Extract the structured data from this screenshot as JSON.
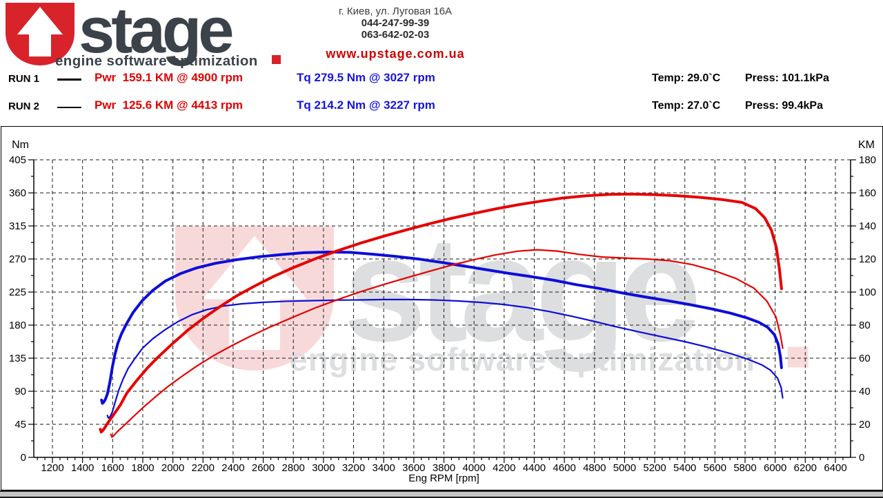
{
  "header": {
    "logo": {
      "brand": "stage",
      "tagline": "engine software optimization"
    },
    "address_lines": [
      "г. Киев, ул. Луговая 16А",
      "044-247-99-39",
      "063-642-02-03"
    ],
    "website": "www.upstage.com.ua"
  },
  "runs": [
    {
      "label": "RUN 1",
      "power_text": "Pwr  159.1 KM @ 4900 rpm",
      "torque_text": "Tq 279.5 Nm @ 3027 rpm",
      "temp_text": "Temp: 29.0`C",
      "press_text": "Press: 101.1kPa"
    },
    {
      "label": "RUN 2",
      "power_text": "Pwr  125.6 KM @ 4413 rpm",
      "torque_text": "Tq 214.2 Nm @ 3227 rpm",
      "temp_text": "Temp: 27.0`C",
      "press_text": "Press: 99.4kPa"
    }
  ],
  "colors": {
    "power_curve": "#e60000",
    "torque_curve": "#0d0dd9",
    "power_text": "#e00000",
    "torque_text": "#1515dd",
    "brand_red": "#d8232a",
    "brand_dark": "#3b424a",
    "website_red": "#cc0000",
    "grid": "#1a1a1a"
  },
  "chart_data": {
    "type": "line",
    "xlabel": "Eng RPM [rpm]",
    "x_axis": {
      "min_drawn": 1076,
      "max_drawn": 6501,
      "tick_min": 1200,
      "tick_max": 6400,
      "tick_step": 200,
      "minor_step": 50
    },
    "left_axis": {
      "label": "Nm",
      "min": 0,
      "max": 405,
      "tick_step": 45,
      "minor_step": 22.5
    },
    "right_axis": {
      "label": "KM",
      "min": 0,
      "max": 180,
      "tick_step": 20,
      "minor_step": 10
    },
    "grid": true,
    "legend_position": "top-outside",
    "series": [
      {
        "name": "run2-torque",
        "run": "RUN 2",
        "quantity": "torque",
        "axis": "left",
        "peak_label": "214.2 Nm @ 3227 rpm",
        "color": "#0d0dd9",
        "width": 2.2,
        "points": [
          [
            1565,
            57
          ],
          [
            1572,
            53.5
          ],
          [
            1582,
            55
          ],
          [
            1598,
            62
          ],
          [
            1618,
            76
          ],
          [
            1640,
            91
          ],
          [
            1668,
            106
          ],
          [
            1703,
            121
          ],
          [
            1745,
            134
          ],
          [
            1800,
            149
          ],
          [
            1870,
            162
          ],
          [
            1950,
            174
          ],
          [
            2035,
            185
          ],
          [
            2125,
            194
          ],
          [
            2225,
            201
          ],
          [
            2335,
            206
          ],
          [
            2455,
            209
          ],
          [
            2600,
            211
          ],
          [
            2760,
            212.5
          ],
          [
            2930,
            213.3
          ],
          [
            3100,
            214
          ],
          [
            3230,
            214.2
          ],
          [
            3400,
            214.8
          ],
          [
            3570,
            214.8
          ],
          [
            3740,
            214.2
          ],
          [
            3900,
            212.8
          ],
          [
            4050,
            210.8
          ],
          [
            4200,
            208
          ],
          [
            4350,
            204
          ],
          [
            4500,
            198.5
          ],
          [
            4650,
            192
          ],
          [
            4800,
            185
          ],
          [
            4950,
            177.5
          ],
          [
            5100,
            170.5
          ],
          [
            5250,
            164
          ],
          [
            5400,
            157.5
          ],
          [
            5550,
            150
          ],
          [
            5700,
            141.5
          ],
          [
            5820,
            133.5
          ],
          [
            5910,
            126
          ],
          [
            5970,
            118.5
          ],
          [
            6015,
            108
          ],
          [
            6040,
            95
          ],
          [
            6050,
            81
          ]
        ]
      },
      {
        "name": "run1-torque",
        "run": "RUN 1",
        "quantity": "torque",
        "axis": "left",
        "peak_label": "279.5 Nm @ 3027 rpm",
        "color": "#0d0dd9",
        "width": 4,
        "points": [
          [
            1526,
            78
          ],
          [
            1532,
            73.5
          ],
          [
            1540,
            75
          ],
          [
            1552,
            79
          ],
          [
            1566,
            87
          ],
          [
            1582,
            103
          ],
          [
            1598,
            123
          ],
          [
            1615,
            140
          ],
          [
            1634,
            155
          ],
          [
            1658,
            168
          ],
          [
            1690,
            181
          ],
          [
            1735,
            197
          ],
          [
            1795,
            213
          ],
          [
            1865,
            227
          ],
          [
            1950,
            240
          ],
          [
            2050,
            250
          ],
          [
            2160,
            258
          ],
          [
            2280,
            264
          ],
          [
            2420,
            269
          ],
          [
            2570,
            273
          ],
          [
            2720,
            276
          ],
          [
            2870,
            278.5
          ],
          [
            3030,
            279.5
          ],
          [
            3180,
            279
          ],
          [
            3330,
            276.5
          ],
          [
            3480,
            273.5
          ],
          [
            3630,
            270
          ],
          [
            3780,
            265.5
          ],
          [
            3930,
            260.5
          ],
          [
            4080,
            255.5
          ],
          [
            4230,
            250.5
          ],
          [
            4380,
            246
          ],
          [
            4530,
            241
          ],
          [
            4680,
            235
          ],
          [
            4830,
            230
          ],
          [
            4980,
            224
          ],
          [
            5130,
            218.5
          ],
          [
            5280,
            213.5
          ],
          [
            5430,
            208
          ],
          [
            5580,
            202
          ],
          [
            5700,
            196.5
          ],
          [
            5810,
            190
          ],
          [
            5890,
            184
          ],
          [
            5950,
            177
          ],
          [
            5995,
            167
          ],
          [
            6020,
            154
          ],
          [
            6035,
            137
          ],
          [
            6042,
            122
          ]
        ]
      },
      {
        "name": "run2-power",
        "run": "RUN 2",
        "quantity": "power",
        "axis": "right",
        "peak_label": "125.6 KM @ 4413 rpm",
        "color": "#e60000",
        "width": 2.2,
        "points": [
          [
            1588,
            14
          ],
          [
            1595,
            12.3
          ],
          [
            1606,
            13
          ],
          [
            1630,
            15.5
          ],
          [
            1672,
            19
          ],
          [
            1730,
            24
          ],
          [
            1800,
            30
          ],
          [
            1880,
            36.3
          ],
          [
            1965,
            42.7
          ],
          [
            2060,
            49
          ],
          [
            2160,
            55.3
          ],
          [
            2270,
            61.5
          ],
          [
            2390,
            67.5
          ],
          [
            2515,
            73.3
          ],
          [
            2650,
            79
          ],
          [
            2790,
            84.5
          ],
          [
            2940,
            90.2
          ],
          [
            3090,
            95.3
          ],
          [
            3240,
            100
          ],
          [
            3390,
            104.3
          ],
          [
            3540,
            108.3
          ],
          [
            3690,
            112.2
          ],
          [
            3840,
            116
          ],
          [
            3990,
            119.4
          ],
          [
            4140,
            122.4
          ],
          [
            4290,
            124.7
          ],
          [
            4420,
            125.6
          ],
          [
            4550,
            124.8
          ],
          [
            4700,
            122.8
          ],
          [
            4850,
            121.2
          ],
          [
            5000,
            120.6
          ],
          [
            5150,
            120
          ],
          [
            5300,
            119
          ],
          [
            5450,
            116.6
          ],
          [
            5600,
            112.8
          ],
          [
            5740,
            108.2
          ],
          [
            5860,
            102.3
          ],
          [
            5945,
            94.5
          ],
          [
            6005,
            85
          ],
          [
            6035,
            74
          ],
          [
            6050,
            66
          ]
        ]
      },
      {
        "name": "run1-power",
        "run": "RUN 1",
        "quantity": "power",
        "axis": "right",
        "peak_label": "159.1 KM @ 4900 rpm",
        "color": "#e60000",
        "width": 4,
        "points": [
          [
            1518,
            17
          ],
          [
            1524,
            15.3
          ],
          [
            1532,
            16
          ],
          [
            1545,
            17.5
          ],
          [
            1565,
            20.5
          ],
          [
            1600,
            25
          ],
          [
            1650,
            31.5
          ],
          [
            1695,
            39
          ],
          [
            1760,
            46.5
          ],
          [
            1830,
            54
          ],
          [
            1900,
            60.5
          ],
          [
            2000,
            69
          ],
          [
            2100,
            77
          ],
          [
            2200,
            84
          ],
          [
            2310,
            91
          ],
          [
            2420,
            97.5
          ],
          [
            2540,
            103.5
          ],
          [
            2670,
            109.5
          ],
          [
            2800,
            114.8
          ],
          [
            2950,
            120.3
          ],
          [
            3100,
            125.2
          ],
          [
            3250,
            129.7
          ],
          [
            3400,
            133.8
          ],
          [
            3550,
            137.6
          ],
          [
            3700,
            141.2
          ],
          [
            3850,
            144.6
          ],
          [
            4000,
            147.6
          ],
          [
            4150,
            150.4
          ],
          [
            4300,
            152.9
          ],
          [
            4450,
            155.1
          ],
          [
            4600,
            157
          ],
          [
            4750,
            158.3
          ],
          [
            4900,
            159.1
          ],
          [
            5050,
            159.3
          ],
          [
            5200,
            158.9
          ],
          [
            5350,
            158.3
          ],
          [
            5500,
            157.3
          ],
          [
            5650,
            155.9
          ],
          [
            5780,
            154.2
          ],
          [
            5870,
            150.5
          ],
          [
            5930,
            145
          ],
          [
            5975,
            137.5
          ],
          [
            6008,
            127
          ],
          [
            6028,
            114
          ],
          [
            6042,
            102
          ]
        ]
      }
    ]
  }
}
